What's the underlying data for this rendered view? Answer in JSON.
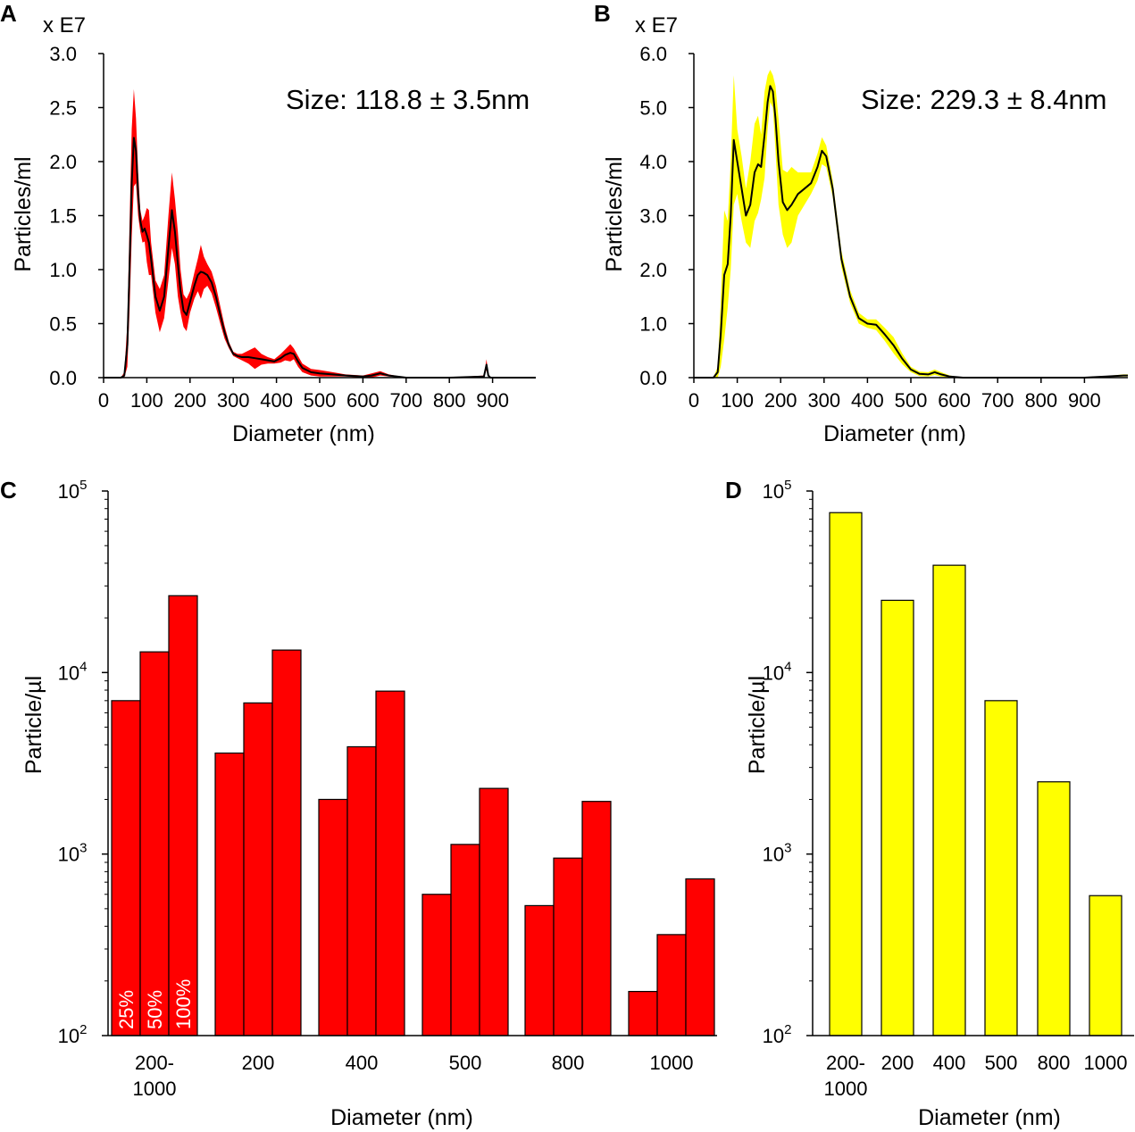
{
  "chart_data": [
    {
      "panel": "A",
      "type": "area",
      "description_color": "#ff0000",
      "line_color": "#000000",
      "band_color": "#ff0000",
      "multiplier_label": "x E7",
      "annotation": "Size: 118.8 ± 3.5nm",
      "xlabel": "Diameter (nm)",
      "ylabel": "Particles/ml",
      "xlim": [
        0,
        1000
      ],
      "ylim": [
        0,
        3.0
      ],
      "xticks": [
        0,
        100,
        200,
        300,
        400,
        500,
        600,
        700,
        800,
        900
      ],
      "yticks": [
        0.0,
        0.5,
        1.0,
        1.5,
        2.0,
        2.5,
        3.0
      ],
      "ytick_labels": [
        "0.0",
        "0.5",
        "1.0",
        "1.5",
        "2.0",
        "2.5",
        "3.0"
      ],
      "x": [
        0,
        40,
        48,
        55,
        60,
        65,
        70,
        75,
        80,
        85,
        90,
        95,
        100,
        105,
        110,
        120,
        130,
        140,
        150,
        158,
        165,
        172,
        178,
        185,
        192,
        200,
        210,
        218,
        225,
        232,
        240,
        250,
        260,
        270,
        280,
        290,
        300,
        310,
        320,
        335,
        350,
        365,
        380,
        395,
        410,
        420,
        432,
        440,
        450,
        460,
        480,
        500,
        530,
        560,
        600,
        620,
        640,
        660,
        700,
        800,
        880,
        886,
        890,
        895,
        1000
      ],
      "y": [
        0,
        0,
        0.02,
        0.3,
        1.0,
        1.8,
        2.22,
        2.1,
        1.7,
        1.45,
        1.35,
        1.38,
        1.32,
        1.25,
        1.1,
        0.75,
        0.62,
        0.75,
        1.2,
        1.55,
        1.35,
        1.05,
        0.8,
        0.62,
        0.58,
        0.7,
        0.85,
        0.95,
        0.98,
        0.97,
        0.95,
        0.88,
        0.75,
        0.58,
        0.42,
        0.3,
        0.22,
        0.2,
        0.19,
        0.19,
        0.18,
        0.17,
        0.16,
        0.15,
        0.18,
        0.21,
        0.23,
        0.22,
        0.15,
        0.09,
        0.05,
        0.04,
        0.03,
        0.02,
        0.01,
        0.02,
        0.04,
        0.02,
        0.0,
        0.0,
        0.01,
        0.12,
        0.02,
        0.0,
        0.0
      ],
      "sd": [
        0,
        0,
        0.03,
        0.2,
        0.4,
        0.5,
        0.45,
        0.3,
        0.2,
        0.1,
        0.1,
        0.12,
        0.25,
        0.3,
        0.15,
        0.15,
        0.2,
        0.2,
        0.3,
        0.35,
        0.3,
        0.3,
        0.2,
        0.15,
        0.15,
        0.1,
        0.12,
        0.15,
        0.25,
        0.15,
        0.1,
        0.1,
        0.1,
        0.08,
        0.06,
        0.03,
        0.02,
        0.02,
        0.03,
        0.06,
        0.1,
        0.05,
        0.03,
        0.02,
        0.04,
        0.05,
        0.08,
        0.05,
        0.05,
        0.04,
        0.03,
        0.03,
        0.02,
        0.01,
        0.01,
        0.02,
        0.02,
        0.01,
        0.0,
        0.0,
        0.01,
        0.05,
        0.01,
        0.0,
        0.0
      ]
    },
    {
      "panel": "B",
      "type": "area",
      "line_color": "#000000",
      "band_color": "#ffff00",
      "multiplier_label": "x E7",
      "annotation": "Size: 229.3 ± 8.4nm",
      "xlabel": "Diameter (nm)",
      "ylabel": "Particles/ml",
      "xlim": [
        0,
        1000
      ],
      "ylim": [
        0,
        6.0
      ],
      "xticks": [
        0,
        100,
        200,
        300,
        400,
        500,
        600,
        700,
        800,
        900
      ],
      "yticks": [
        0.0,
        1.0,
        2.0,
        3.0,
        4.0,
        5.0,
        6.0
      ],
      "ytick_labels": [
        "0.0",
        "1.0",
        "2.0",
        "3.0",
        "4.0",
        "5.0",
        "6.0"
      ],
      "x": [
        0,
        45,
        55,
        62,
        70,
        78,
        85,
        92,
        100,
        110,
        120,
        130,
        140,
        148,
        155,
        163,
        170,
        176,
        182,
        188,
        195,
        205,
        215,
        225,
        240,
        255,
        270,
        285,
        295,
        305,
        320,
        340,
        360,
        380,
        400,
        420,
        440,
        460,
        480,
        500,
        520,
        540,
        555,
        570,
        590,
        620,
        700,
        800,
        900,
        950,
        990,
        1000
      ],
      "y": [
        0,
        0,
        0.1,
        0.8,
        1.9,
        2.1,
        3.0,
        4.4,
        4.0,
        3.5,
        3.0,
        3.2,
        3.8,
        3.95,
        3.9,
        4.5,
        5.1,
        5.4,
        5.3,
        4.8,
        4.0,
        3.25,
        3.1,
        3.2,
        3.4,
        3.5,
        3.6,
        3.9,
        4.2,
        4.1,
        3.5,
        2.2,
        1.5,
        1.1,
        1.0,
        0.98,
        0.8,
        0.6,
        0.35,
        0.15,
        0.07,
        0.06,
        0.1,
        0.06,
        0.02,
        0.0,
        0.0,
        0.0,
        0.0,
        0.02,
        0.04,
        0.04
      ],
      "sd": [
        0,
        0,
        0.1,
        0.6,
        1.2,
        0.8,
        1.0,
        1.2,
        0.6,
        0.6,
        0.5,
        0.8,
        0.9,
        0.9,
        0.6,
        0.8,
        0.5,
        0.3,
        0.3,
        0.6,
        0.8,
        0.6,
        0.7,
        0.7,
        0.4,
        0.3,
        0.2,
        0.25,
        0.25,
        0.2,
        0.15,
        0.15,
        0.12,
        0.1,
        0.08,
        0.1,
        0.12,
        0.15,
        0.1,
        0.05,
        0.04,
        0.04,
        0.05,
        0.04,
        0.02,
        0.0,
        0.0,
        0.0,
        0.0,
        0.01,
        0.02,
        0.02
      ]
    },
    {
      "panel": "C",
      "type": "bar",
      "scale": "log",
      "bar_color": "#ff0000",
      "xlabel": "Diameter (nm)",
      "ylabel": "Particle/µl",
      "ylim": [
        100,
        100000
      ],
      "ytick_exponents": [
        "2",
        "3",
        "4",
        "5"
      ],
      "ytick_base": "10",
      "categories": [
        [
          "200-",
          "1000"
        ],
        [
          "200"
        ],
        [
          "400"
        ],
        [
          "500"
        ],
        [
          "800"
        ],
        [
          "1000"
        ]
      ],
      "series": [
        {
          "name": "25%",
          "values": [
            7000,
            3600,
            2000,
            600,
            520,
            175
          ]
        },
        {
          "name": "50%",
          "values": [
            13000,
            6800,
            3900,
            1130,
            950,
            360
          ]
        },
        {
          "name": "100%",
          "values": [
            26500,
            13300,
            7900,
            2300,
            1950,
            730
          ]
        }
      ]
    },
    {
      "panel": "D",
      "type": "bar",
      "scale": "log",
      "bar_color": "#ffff00",
      "xlabel": "Diameter (nm)",
      "ylabel": "Particle/µl",
      "ylim": [
        100,
        100000
      ],
      "ytick_exponents": [
        "2",
        "3",
        "4",
        "5"
      ],
      "ytick_base": "10",
      "categories": [
        [
          "200-",
          "1000"
        ],
        [
          "200"
        ],
        [
          "400"
        ],
        [
          "500"
        ],
        [
          "800"
        ],
        [
          "1000"
        ]
      ],
      "values": [
        76000,
        25000,
        39000,
        7000,
        2500,
        590
      ]
    }
  ]
}
